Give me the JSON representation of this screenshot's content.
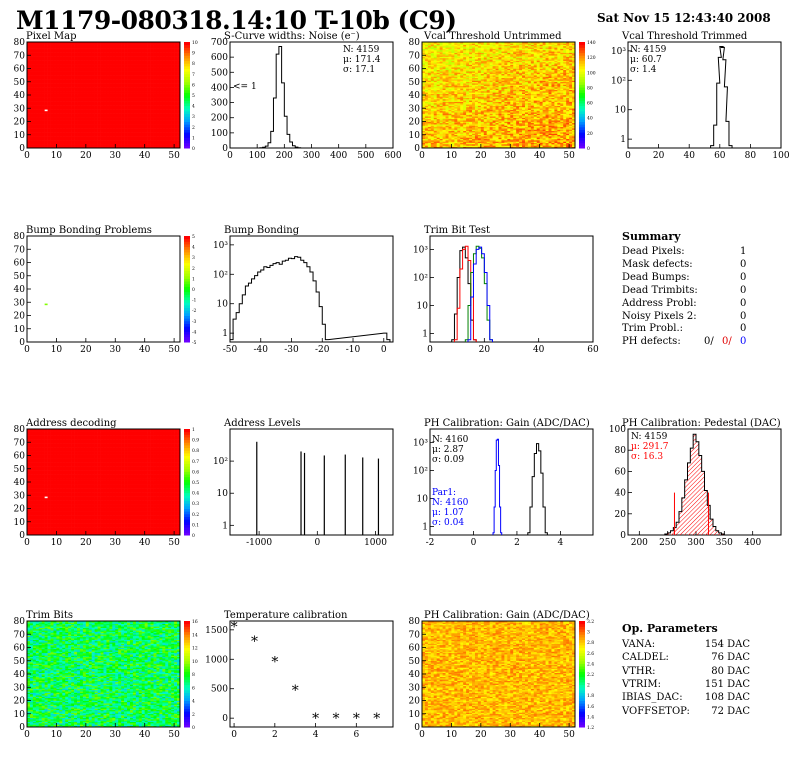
{
  "header": {
    "title": "M1179-080318.14:10 T-10b (C9)",
    "date": "Sat Nov 15 12:43:40 2008"
  },
  "panels": {
    "pixel_map": {
      "title": "Pixel Map"
    },
    "scurve": {
      "title": "S-Curve widths: Noise (e⁻)",
      "stats": [
        "N: 4159",
        "μ: 171.4",
        "σ: 17.1"
      ],
      "note": "<= 1"
    },
    "vcal_untrimmed": {
      "title": "Vcal Threshold Untrimmed"
    },
    "vcal_trimmed": {
      "title": "Vcal Threshold Trimmed",
      "stats": [
        "N: 4159",
        "μ: 60.7",
        "σ: 1.4"
      ]
    },
    "bump_problems": {
      "title": "Bump Bonding Problems"
    },
    "bump_bonding": {
      "title": "Bump Bonding"
    },
    "trim_bit_test": {
      "title": "Trim Bit Test"
    },
    "address_decoding": {
      "title": "Address decoding"
    },
    "address_levels": {
      "title": "Address Levels"
    },
    "ph_gain": {
      "title": "PH Calibration: Gain (ADC/DAC)",
      "stats": [
        "N: 4160",
        "μ: 2.87",
        "σ: 0.09"
      ],
      "par1": [
        "Par1:",
        "N: 4160",
        "μ: 1.07",
        "σ: 0.04"
      ]
    },
    "ph_pedestal": {
      "title": "PH Calibration: Pedestal (DAC)",
      "stats": [
        "N: 4159",
        "μ: 291.7",
        "σ: 16.3"
      ]
    },
    "trim_bits": {
      "title": "Trim Bits"
    },
    "temperature": {
      "title": "Temperature calibration"
    },
    "ph_gain_map": {
      "title": "PH Calibration: Gain (ADC/DAC)"
    }
  },
  "summary": {
    "title": "Summary",
    "rows": [
      {
        "label": "Dead Pixels:",
        "value": "1"
      },
      {
        "label": "Mask defects:",
        "value": "0"
      },
      {
        "label": "Dead Bumps:",
        "value": "0"
      },
      {
        "label": "Dead Trimbits:",
        "value": "0"
      },
      {
        "label": "Address Probl:",
        "value": "0"
      },
      {
        "label": "Noisy Pixels 2:",
        "value": "0"
      },
      {
        "label": "Trim Probl.:",
        "value": "0"
      }
    ],
    "ph_defects": {
      "label": "PH defects:",
      "v1": "0/",
      "v2": "0/",
      "v3": "0"
    }
  },
  "op_params": {
    "title": "Op. Parameters",
    "rows": [
      {
        "label": "VANA:",
        "value": "154 DAC"
      },
      {
        "label": "CALDEL:",
        "value": "76 DAC"
      },
      {
        "label": "VTHR:",
        "value": "80 DAC"
      },
      {
        "label": "VTRIM:",
        "value": "151 DAC"
      },
      {
        "label": "IBIAS_DAC:",
        "value": "108 DAC"
      },
      {
        "label": "VOFFSETOP:",
        "value": "72 DAC"
      }
    ]
  },
  "chart_data": [
    {
      "id": "pixel_map",
      "type": "heatmap",
      "xlim": [
        0,
        52
      ],
      "ylim": [
        0,
        80
      ],
      "xticks": [
        0,
        10,
        20,
        30,
        40,
        50
      ],
      "yticks": [
        0,
        10,
        20,
        30,
        40,
        50,
        60,
        70,
        80
      ],
      "zscale": [
        0,
        10
      ],
      "zticks": [
        "0",
        "1",
        "2",
        "3",
        "4",
        "5",
        "6",
        "7",
        "8",
        "9",
        "10"
      ],
      "uniform_value": 10,
      "special_pixels": [
        {
          "x": 6,
          "y": 28,
          "value": 0
        }
      ]
    },
    {
      "id": "scurve",
      "type": "histogram",
      "xlim": [
        0,
        600
      ],
      "ylim": [
        0,
        700
      ],
      "xticks": [
        0,
        100,
        200,
        300,
        400,
        500,
        600
      ],
      "yticks": [
        0,
        100,
        200,
        300,
        400,
        500,
        600,
        700
      ],
      "bins": [
        [
          100,
          0
        ],
        [
          110,
          2
        ],
        [
          120,
          5
        ],
        [
          130,
          12
        ],
        [
          140,
          35
        ],
        [
          150,
          110
        ],
        [
          160,
          330
        ],
        [
          170,
          620
        ],
        [
          180,
          670
        ],
        [
          190,
          430
        ],
        [
          200,
          210
        ],
        [
          210,
          90
        ],
        [
          220,
          40
        ],
        [
          230,
          15
        ],
        [
          240,
          6
        ],
        [
          250,
          2
        ],
        [
          260,
          0
        ]
      ]
    },
    {
      "id": "vcal_untrimmed",
      "type": "heatmap",
      "xlim": [
        0,
        52
      ],
      "ylim": [
        0,
        80
      ],
      "xticks": [
        0,
        10,
        20,
        30,
        40,
        50
      ],
      "yticks": [
        0,
        10,
        20,
        30,
        40,
        50,
        60,
        70,
        80
      ],
      "zscale": [
        0,
        140
      ],
      "zticks": [
        "0",
        "20",
        "40",
        "60",
        "80",
        "100",
        "120",
        "140"
      ],
      "typical_range": [
        90,
        130
      ]
    },
    {
      "id": "vcal_trimmed",
      "type": "histogram",
      "log_y": true,
      "xlim": [
        0,
        100
      ],
      "ylim": [
        0.5,
        2000
      ],
      "xticks": [
        0,
        20,
        40,
        60,
        80,
        100
      ],
      "yticks_labels": [
        "1",
        "10",
        "10²",
        "10³"
      ],
      "bins": [
        [
          54,
          0.6
        ],
        [
          56,
          3
        ],
        [
          58,
          80
        ],
        [
          59,
          600
        ],
        [
          60,
          1400
        ],
        [
          61,
          1300
        ],
        [
          62,
          500
        ],
        [
          63,
          60
        ],
        [
          64,
          4
        ],
        [
          66,
          0.6
        ]
      ]
    },
    {
      "id": "bump_problems",
      "type": "heatmap",
      "xlim": [
        0,
        52
      ],
      "ylim": [
        0,
        80
      ],
      "xticks": [
        0,
        10,
        20,
        30,
        40,
        50
      ],
      "yticks": [
        0,
        10,
        20,
        30,
        40,
        50,
        60,
        70,
        80
      ],
      "zscale": [
        -5,
        5
      ],
      "zticks": [
        "-5",
        "-4",
        "-3",
        "-2",
        "-1",
        "0",
        "1",
        "2",
        "3",
        "4",
        "5"
      ],
      "special_pixels": [
        {
          "x": 6,
          "y": 28,
          "value": 1
        }
      ]
    },
    {
      "id": "bump_bonding",
      "type": "histogram",
      "log_y": true,
      "xlim": [
        -50,
        3
      ],
      "ylim": [
        0.5,
        2000
      ],
      "xticks": [
        -50,
        -40,
        -30,
        -20,
        -10,
        0
      ],
      "yticks_labels": [
        "1",
        "10",
        "10²",
        "10³"
      ],
      "bins": [
        [
          -50,
          0.6
        ],
        [
          -49,
          3
        ],
        [
          -48,
          5
        ],
        [
          -47,
          10
        ],
        [
          -46,
          20
        ],
        [
          -45,
          40
        ],
        [
          -44,
          50
        ],
        [
          -43,
          70
        ],
        [
          -42,
          90
        ],
        [
          -41,
          120
        ],
        [
          -40,
          140
        ],
        [
          -39,
          180
        ],
        [
          -38,
          170
        ],
        [
          -37,
          200
        ],
        [
          -36,
          230
        ],
        [
          -35,
          250
        ],
        [
          -34,
          220
        ],
        [
          -33,
          280
        ],
        [
          -32,
          300
        ],
        [
          -31,
          350
        ],
        [
          -30,
          340
        ],
        [
          -29,
          400
        ],
        [
          -28,
          380
        ],
        [
          -27,
          300
        ],
        [
          -26,
          250
        ],
        [
          -25,
          180
        ],
        [
          -24,
          120
        ],
        [
          -23,
          60
        ],
        [
          -22,
          25
        ],
        [
          -21,
          8
        ],
        [
          -20,
          2
        ],
        [
          -19,
          0.6
        ],
        [
          0,
          1
        ],
        [
          1,
          0.6
        ]
      ]
    },
    {
      "id": "trim_bit_test",
      "type": "histogram",
      "log_y": true,
      "xlim": [
        0,
        60
      ],
      "ylim": [
        0.5,
        3000
      ],
      "xticks": [
        0,
        20,
        40,
        60
      ],
      "yticks_labels": [
        "1",
        "10",
        "10²",
        "10³"
      ],
      "series": [
        {
          "color": "#000000",
          "bins": [
            [
              8,
              0.6
            ],
            [
              9,
              5
            ],
            [
              10,
              100
            ],
            [
              11,
              900
            ],
            [
              12,
              1200
            ],
            [
              13,
              500
            ],
            [
              14,
              60
            ],
            [
              15,
              3
            ],
            [
              16,
              0.6
            ]
          ]
        },
        {
          "color": "#ff0000",
          "bins": [
            [
              9,
              0.6
            ],
            [
              10,
              8
            ],
            [
              11,
              200
            ],
            [
              12,
              1000
            ],
            [
              13,
              1300
            ],
            [
              14,
              400
            ],
            [
              15,
              20
            ],
            [
              16,
              0.6
            ]
          ]
        },
        {
          "color": "#008000",
          "bins": [
            [
              13,
              0.6
            ],
            [
              14,
              10
            ],
            [
              15,
              150
            ],
            [
              16,
              700
            ],
            [
              17,
              1300
            ],
            [
              18,
              1100
            ],
            [
              19,
              500
            ],
            [
              20,
              60
            ],
            [
              21,
              3
            ],
            [
              22,
              0.6
            ]
          ]
        },
        {
          "color": "#0000ff",
          "bins": [
            [
              14,
              0.6
            ],
            [
              15,
              20
            ],
            [
              16,
              300
            ],
            [
              17,
              1000
            ],
            [
              18,
              1200
            ],
            [
              19,
              700
            ],
            [
              20,
              150
            ],
            [
              21,
              10
            ],
            [
              22,
              0.6
            ]
          ]
        }
      ]
    },
    {
      "id": "address_decoding",
      "type": "heatmap",
      "xlim": [
        0,
        52
      ],
      "ylim": [
        0,
        80
      ],
      "xticks": [
        0,
        10,
        20,
        30,
        40,
        50
      ],
      "yticks": [
        0,
        10,
        20,
        30,
        40,
        50,
        60,
        70,
        80
      ],
      "zscale": [
        0,
        1
      ],
      "zticks": [
        "0",
        "0.1",
        "0.2",
        "0.3",
        "0.4",
        "0.5",
        "0.6",
        "0.7",
        "0.8",
        "0.9",
        "1"
      ],
      "uniform_value": 1,
      "special_pixels": [
        {
          "x": 6,
          "y": 28,
          "value": 0
        }
      ]
    },
    {
      "id": "address_levels",
      "type": "histogram",
      "log_y": true,
      "xlim": [
        -1500,
        1300
      ],
      "ylim": [
        0.5,
        1000
      ],
      "xticks": [
        -1000,
        0,
        1000
      ],
      "yticks_labels": [
        "1",
        "10",
        "10²"
      ],
      "peaks": [
        [
          -1040,
          400
        ],
        [
          -280,
          200
        ],
        [
          -220,
          180
        ],
        [
          120,
          150
        ],
        [
          480,
          160
        ],
        [
          780,
          130
        ],
        [
          1050,
          120
        ]
      ]
    },
    {
      "id": "ph_gain",
      "type": "histogram",
      "log_y": true,
      "xlim": [
        -2,
        5.5
      ],
      "ylim": [
        0.5,
        3000
      ],
      "xticks": [
        -2,
        0,
        2,
        4
      ],
      "yticks_labels": [
        "1",
        "10",
        "10²",
        "10³"
      ],
      "series": [
        {
          "color": "#000000",
          "bins": [
            [
              2.5,
              0.6
            ],
            [
              2.6,
              5
            ],
            [
              2.7,
              60
            ],
            [
              2.8,
              400
            ],
            [
              2.9,
              900
            ],
            [
              3.0,
              500
            ],
            [
              3.1,
              80
            ],
            [
              3.2,
              5
            ],
            [
              3.3,
              0.6
            ]
          ]
        },
        {
          "color": "#0000ff",
          "bins": [
            [
              0.9,
              0.6
            ],
            [
              0.95,
              5
            ],
            [
              1.0,
              100
            ],
            [
              1.05,
              1200
            ],
            [
              1.1,
              1300
            ],
            [
              1.15,
              150
            ],
            [
              1.2,
              5
            ],
            [
              1.25,
              0.6
            ]
          ]
        }
      ]
    },
    {
      "id": "ph_pedestal",
      "type": "histogram",
      "xlim": [
        180,
        450
      ],
      "ylim": [
        0,
        100
      ],
      "xticks": [
        200,
        250,
        300,
        350,
        400
      ],
      "yticks": [
        0,
        20,
        40,
        60,
        80,
        100
      ],
      "bins": [
        [
          240,
          0
        ],
        [
          245,
          1
        ],
        [
          250,
          2
        ],
        [
          255,
          4
        ],
        [
          260,
          7
        ],
        [
          265,
          12
        ],
        [
          270,
          22
        ],
        [
          275,
          35
        ],
        [
          280,
          52
        ],
        [
          285,
          68
        ],
        [
          290,
          82
        ],
        [
          295,
          95
        ],
        [
          300,
          88
        ],
        [
          305,
          75
        ],
        [
          310,
          60
        ],
        [
          315,
          42
        ],
        [
          320,
          28
        ],
        [
          325,
          15
        ],
        [
          330,
          8
        ],
        [
          335,
          4
        ],
        [
          340,
          2
        ],
        [
          345,
          1
        ],
        [
          350,
          0
        ]
      ],
      "markers": [
        262,
        322
      ]
    },
    {
      "id": "trim_bits",
      "type": "heatmap",
      "xlim": [
        0,
        52
      ],
      "ylim": [
        0,
        80
      ],
      "xticks": [
        0,
        10,
        20,
        30,
        40,
        50
      ],
      "yticks": [
        0,
        10,
        20,
        30,
        40,
        50,
        60,
        70,
        80
      ],
      "zscale": [
        0,
        16
      ],
      "zticks": [
        "0",
        "2",
        "4",
        "6",
        "8",
        "10",
        "12",
        "14",
        "16"
      ],
      "typical_range": [
        5,
        11
      ]
    },
    {
      "id": "temperature",
      "type": "scatter",
      "xlim": [
        -0.2,
        7.8
      ],
      "ylim": [
        -150,
        1650
      ],
      "xticks": [
        0,
        2,
        4,
        6
      ],
      "yticks": [
        0,
        500,
        1000,
        1500
      ],
      "points": [
        [
          0,
          1560
        ],
        [
          1,
          1310
        ],
        [
          2,
          960
        ],
        [
          3,
          480
        ],
        [
          4,
          0
        ],
        [
          5,
          0
        ],
        [
          6,
          0
        ],
        [
          7,
          0
        ]
      ]
    },
    {
      "id": "ph_gain_map",
      "type": "heatmap",
      "xlim": [
        0,
        52
      ],
      "ylim": [
        0,
        80
      ],
      "xticks": [
        0,
        10,
        20,
        30,
        40,
        50
      ],
      "yticks": [
        0,
        10,
        20,
        30,
        40,
        50,
        60,
        70,
        80
      ],
      "zscale": [
        1.2,
        3.2
      ],
      "zticks": [
        "1.2",
        "1.4",
        "1.6",
        "1.8",
        "2",
        "2.2",
        "2.4",
        "2.6",
        "2.8",
        "3",
        "3.2"
      ],
      "typical_range": [
        2.7,
        3.1
      ]
    }
  ]
}
